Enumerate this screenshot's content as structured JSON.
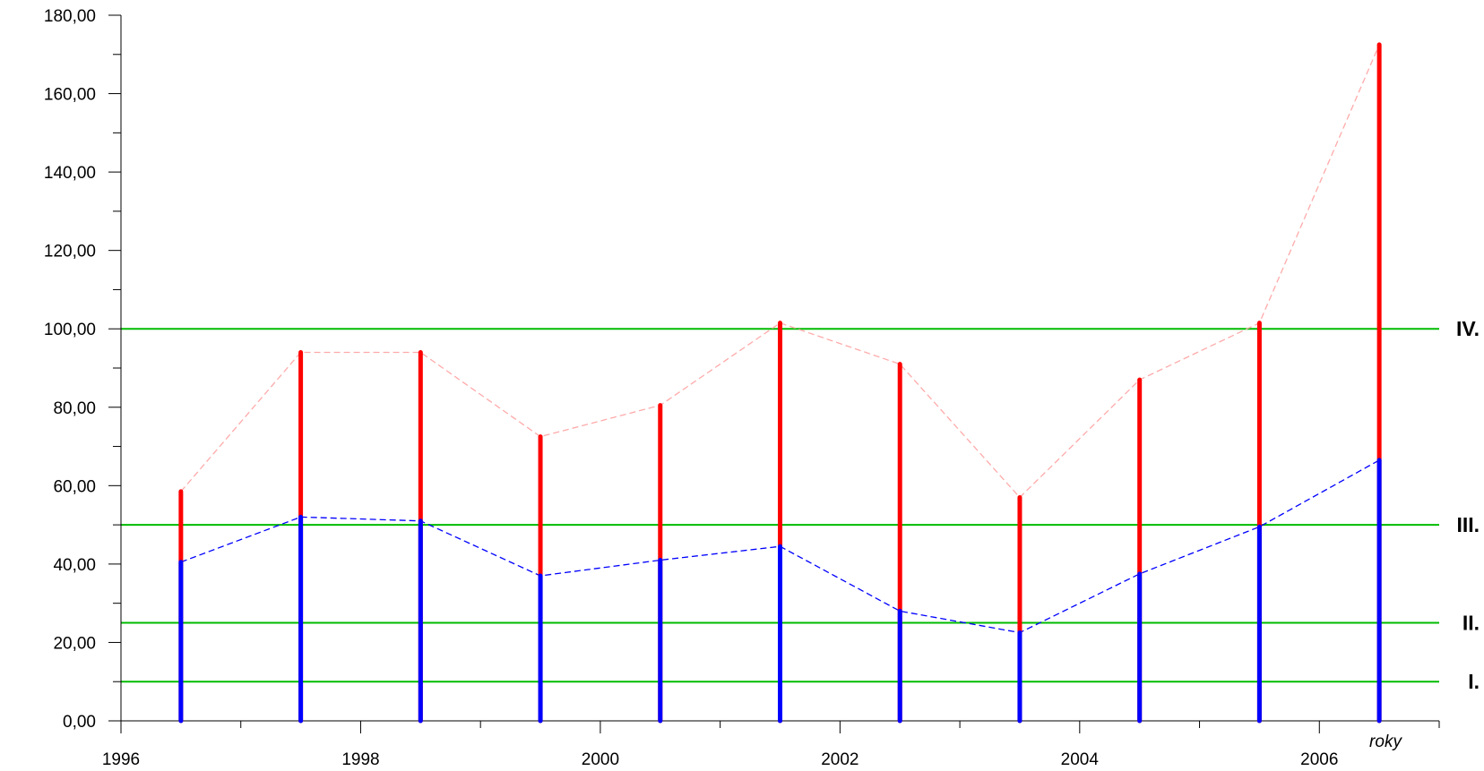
{
  "chart_data": {
    "type": "bar",
    "title": "",
    "xlabel": "roky",
    "ylabel": "",
    "xlim": [
      1996,
      2007
    ],
    "ylim": [
      0,
      180
    ],
    "x_ticks": [
      1996,
      1998,
      2000,
      2002,
      2004,
      2006
    ],
    "x_tick_labels": [
      "1996",
      "1998",
      "2000",
      "2002",
      "2004",
      "2006"
    ],
    "y_ticks": [
      0,
      20,
      40,
      60,
      80,
      100,
      120,
      140,
      160,
      180
    ],
    "y_tick_labels": [
      "0,00",
      "20,00",
      "40,00",
      "60,00",
      "80,00",
      "100,00",
      "120,00",
      "140,00",
      "160,00",
      "180,00"
    ],
    "x": [
      1996.5,
      1997.5,
      1998.5,
      1999.5,
      2000.5,
      2001.5,
      2002.5,
      2003.5,
      2004.5,
      2005.5,
      2006.5
    ],
    "series": [
      {
        "values": [
          58.5,
          94.0,
          94.0,
          72.5,
          80.5,
          101.5,
          91.0,
          57.0,
          87.0,
          101.5,
          172.5
        ],
        "color": "#ff0000",
        "dashed_line_color": "#ffaaaa"
      },
      {
        "values": [
          40.5,
          52.0,
          51.0,
          37.0,
          41.0,
          44.5,
          28.0,
          22.5,
          37.5,
          49.5,
          66.5
        ],
        "color": "#0000ff",
        "dashed_line_color": "#0000ff"
      }
    ],
    "thresholds": [
      {
        "value": 10,
        "label": "I."
      },
      {
        "value": 25,
        "label": "II."
      },
      {
        "value": 50,
        "label": "III."
      },
      {
        "value": 100,
        "label": "IV."
      }
    ],
    "threshold_color": "#00bb00",
    "grid": false,
    "legend": "none"
  }
}
